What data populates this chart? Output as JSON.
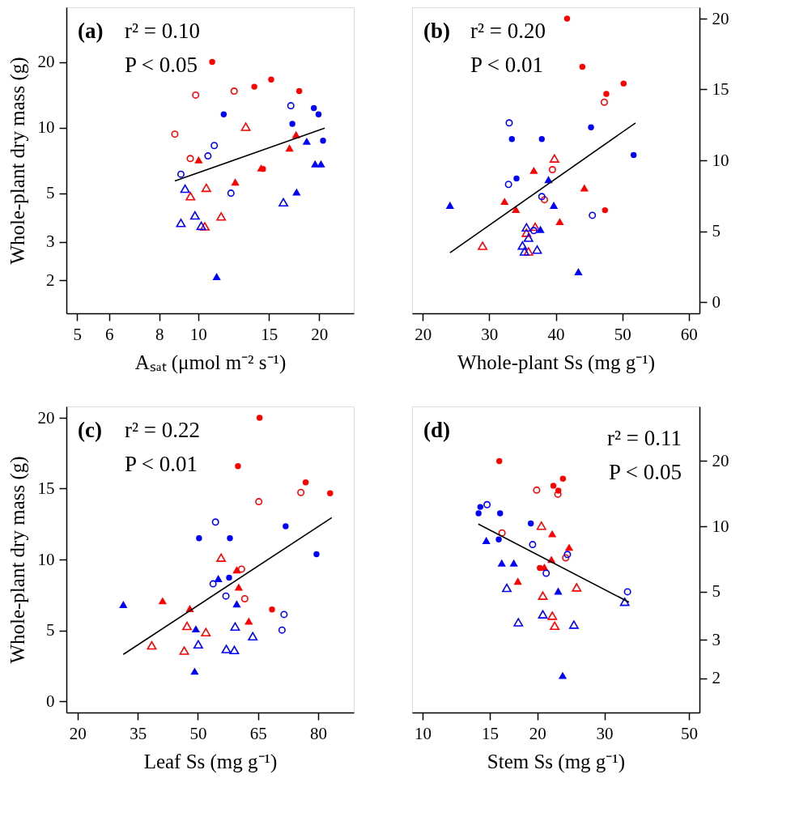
{
  "chart_data": [
    {
      "type": "scatter",
      "xlabel": "Aₛₐₜ (μmol m⁻² s⁻¹)",
      "ylabel": "Whole-plant dry mass (g)",
      "log": "xy",
      "xlim": [
        4.7,
        24.4
      ],
      "ylim": [
        1.41,
        35.6
      ],
      "xticks": [
        5,
        6,
        8,
        10,
        15,
        20
      ],
      "yticks": [
        2,
        3,
        5,
        10,
        20
      ],
      "grid": false,
      "annotations": [
        "(a)",
        "r² = 0.10",
        "P < 0.05"
      ],
      "series": [
        {
          "color": "#ff0000",
          "marker": "circle",
          "x": [
            10.84,
            13.8,
            15.2,
            17.85,
            14.5
          ],
          "values": [
            20.0,
            15.4,
            16.6,
            14.7,
            6.47
          ]
        },
        {
          "color": "#ff0000",
          "marker": "circle",
          "x": [
            9.86,
            12.29,
            8.75,
            9.56
          ],
          "values": [
            14.1,
            14.7,
            9.34,
            7.22
          ]
        },
        {
          "color": "#ff0000",
          "marker": "triangle",
          "x": [
            10.03,
            12.37,
            16.88,
            17.53,
            14.35
          ],
          "values": [
            7.12,
            5.64,
            8.07,
            9.29,
            6.54
          ]
        },
        {
          "color": "#ff0000",
          "marker": "triangle",
          "x": [
            13.14,
            10.48,
            9.57,
            11.41,
            10.39
          ],
          "values": [
            10.1,
            5.3,
            4.85,
            3.92,
            3.53
          ]
        },
        {
          "color": "#0000ff",
          "marker": "circle",
          "x": [
            11.58,
            17.16,
            19.41,
            19.94,
            20.46
          ],
          "values": [
            11.5,
            10.4,
            12.3,
            11.5,
            8.72
          ]
        },
        {
          "color": "#0000ff",
          "marker": "circle",
          "x": [
            9.06,
            10.58,
            10.97,
            12.07,
            17.01
          ],
          "values": [
            6.12,
            7.42,
            8.28,
            5.01,
            12.6
          ]
        },
        {
          "color": "#0000ff",
          "marker": "triangle",
          "x": [
            11.12,
            17.58,
            18.63,
            19.55,
            20.22
          ],
          "values": [
            2.08,
            5.08,
            8.67,
            6.83,
            6.83
          ]
        },
        {
          "color": "#0000ff",
          "marker": "triangle",
          "x": [
            9.28,
            9.06,
            9.82,
            10.18,
            16.3
          ],
          "values": [
            5.25,
            3.66,
            3.96,
            3.55,
            4.55
          ]
        },
        {
          "type": "line",
          "color": "#000000",
          "line_style": "solid",
          "x": [
            8.75,
            20.65
          ],
          "values": [
            5.7,
            9.95
          ]
        }
      ]
    },
    {
      "type": "scatter",
      "xlabel": "Whole-plant Ss (mg g⁻¹)",
      "xlim": [
        18.4,
        61.6
      ],
      "ylim": [
        -0.8,
        20.8
      ],
      "xticks": [
        20,
        30,
        40,
        50,
        60
      ],
      "yticks": [
        0,
        5,
        10,
        15,
        20
      ],
      "grid": false,
      "annotations": [
        "(b)",
        "r² = 0.20",
        "P < 0.01"
      ],
      "series": [
        {
          "color": "#ff0000",
          "marker": "circle",
          "x": [
            41.7,
            44.0,
            50.2,
            47.6,
            47.4
          ],
          "values": [
            20.0,
            16.6,
            15.42,
            14.69,
            6.48
          ]
        },
        {
          "color": "#ff0000",
          "marker": "circle",
          "x": [
            39.5,
            38.3,
            47.3
          ],
          "values": [
            9.34,
            7.22,
            14.1
          ]
        },
        {
          "color": "#ff0000",
          "marker": "triangle",
          "x": [
            36.7,
            32.3,
            34.0,
            44.3,
            40.6
          ],
          "values": [
            9.29,
            7.11,
            6.54,
            8.06,
            5.68
          ]
        },
        {
          "color": "#ff0000",
          "marker": "triangle",
          "x": [
            39.8,
            29.0,
            36.9,
            35.6,
            35.9
          ],
          "values": [
            10.13,
            3.97,
            5.31,
            4.89,
            3.57
          ]
        },
        {
          "color": "#0000ff",
          "marker": "circle",
          "x": [
            33.4,
            37.9,
            45.3,
            51.7,
            34.1
          ],
          "values": [
            11.5,
            11.5,
            12.33,
            10.37,
            8.72
          ]
        },
        {
          "color": "#0000ff",
          "marker": "circle",
          "x": [
            33.0,
            32.9,
            37.9,
            45.5,
            36.7
          ],
          "values": [
            12.64,
            8.3,
            7.44,
            6.12,
            5.04
          ]
        },
        {
          "color": "#0000ff",
          "marker": "triangle",
          "x": [
            24.1,
            38.9,
            39.7,
            37.7,
            43.4
          ],
          "values": [
            6.83,
            8.64,
            6.83,
            5.13,
            2.14
          ]
        },
        {
          "color": "#0000ff",
          "marker": "triangle",
          "x": [
            35.6,
            35.9,
            35.0,
            35.3,
            37.2
          ],
          "values": [
            5.27,
            4.54,
            3.99,
            3.57,
            3.7
          ]
        },
        {
          "type": "line",
          "color": "#000000",
          "line_style": "solid",
          "x": [
            24.1,
            51.98
          ],
          "values": [
            3.48,
            12.64
          ]
        }
      ]
    },
    {
      "type": "scatter",
      "xlabel": "Leaf Ss (mg g⁻¹)",
      "ylabel": "Whole-plant dry mass (g)",
      "xlim": [
        17.2,
        88.9
      ],
      "ylim": [
        -0.8,
        20.8
      ],
      "xticks": [
        20,
        35,
        50,
        65,
        80
      ],
      "yticks": [
        0,
        5,
        10,
        15,
        20
      ],
      "grid": false,
      "annotations": [
        "(c)",
        "r² = 0.22",
        "P < 0.01"
      ],
      "series": [
        {
          "color": "#ff0000",
          "marker": "circle",
          "x": [
            65.4,
            60.0,
            76.9,
            83.0,
            68.5
          ],
          "values": [
            20.0,
            16.59,
            15.44,
            14.67,
            6.47
          ]
        },
        {
          "color": "#ff0000",
          "marker": "circle",
          "x": [
            65.2,
            75.7,
            60.9,
            61.7
          ],
          "values": [
            14.08,
            14.73,
            9.32,
            7.23
          ]
        },
        {
          "color": "#ff0000",
          "marker": "triangle",
          "x": [
            59.7,
            60.2,
            41.2,
            48.0,
            62.7
          ],
          "values": [
            9.27,
            8.06,
            7.09,
            6.54,
            5.66
          ]
        },
        {
          "color": "#ff0000",
          "marker": "triangle",
          "x": [
            55.8,
            38.5,
            46.6,
            47.3,
            52.0
          ],
          "values": [
            10.13,
            3.94,
            3.57,
            5.31,
            4.87
          ]
        },
        {
          "color": "#0000ff",
          "marker": "circle",
          "x": [
            50.3,
            58.0,
            71.9,
            79.6,
            57.8
          ],
          "values": [
            11.5,
            11.5,
            12.34,
            10.37,
            8.72
          ]
        },
        {
          "color": "#0000ff",
          "marker": "circle",
          "x": [
            54.4,
            53.8,
            57.0,
            71.5,
            71.0
          ],
          "values": [
            12.64,
            8.28,
            7.42,
            6.12,
            5.02
          ]
        },
        {
          "color": "#0000ff",
          "marker": "triangle",
          "x": [
            31.4,
            55.1,
            59.7,
            49.5,
            49.2
          ],
          "values": [
            6.83,
            8.66,
            6.87,
            5.11,
            2.12
          ]
        },
        {
          "color": "#0000ff",
          "marker": "triangle",
          "x": [
            50.1,
            57.1,
            59.1,
            59.3,
            63.7
          ],
          "values": [
            4.01,
            3.68,
            3.61,
            5.27,
            4.58
          ]
        },
        {
          "type": "line",
          "color": "#000000",
          "line_style": "solid",
          "x": [
            31.4,
            83.4
          ],
          "values": [
            3.3,
            12.95
          ]
        }
      ]
    },
    {
      "type": "scatter",
      "xlabel": "Stem Ss (mg g⁻¹)",
      "log": "xy",
      "xlim": [
        9.38,
        53.3
      ],
      "ylim": [
        1.39,
        35.7
      ],
      "xticks": [
        10,
        15,
        20,
        30,
        50
      ],
      "yticks": [
        2,
        3,
        5,
        10,
        20
      ],
      "grid": false,
      "annotations": [
        "(d)",
        "r² = 0.11",
        "P < 0.05"
      ],
      "series": [
        {
          "color": "#ff0000",
          "marker": "circle",
          "x": [
            15.89,
            22.04,
            23.35,
            22.71,
            20.31
          ],
          "values": [
            20.0,
            15.4,
            16.59,
            14.62,
            6.44
          ]
        },
        {
          "color": "#ff0000",
          "marker": "circle",
          "x": [
            19.92,
            22.65,
            16.16,
            23.74
          ],
          "values": [
            14.7,
            14.07,
            9.33,
            7.17
          ]
        },
        {
          "color": "#ff0000",
          "marker": "triangle",
          "x": [
            21.88,
            24.24,
            21.78,
            20.87,
            17.78
          ],
          "values": [
            9.26,
            8.02,
            7.05,
            6.49,
            5.6
          ]
        },
        {
          "color": "#ff0000",
          "marker": "triangle",
          "x": [
            20.5,
            25.37,
            20.68,
            21.9,
            22.21
          ],
          "values": [
            10.08,
            5.24,
            4.8,
            3.88,
            3.49
          ]
        },
        {
          "color": "#0000ff",
          "marker": "circle",
          "x": [
            14.02,
            14.17,
            15.97,
            19.23,
            15.84
          ],
          "values": [
            11.5,
            12.3,
            11.5,
            10.33,
            8.71
          ]
        },
        {
          "color": "#0000ff",
          "marker": "circle",
          "x": [
            14.76,
            19.44,
            21.1,
            23.99,
            34.5
          ],
          "values": [
            12.6,
            8.25,
            6.09,
            7.43,
            5.0
          ]
        },
        {
          "color": "#0000ff",
          "marker": "triangle",
          "x": [
            14.69,
            16.13,
            17.35,
            22.69,
            23.31
          ],
          "values": [
            8.62,
            6.79,
            6.79,
            5.04,
            2.06
          ]
        },
        {
          "color": "#0000ff",
          "marker": "triangle",
          "x": [
            16.63,
            17.83,
            20.68,
            24.95,
            33.93
          ],
          "values": [
            5.21,
            3.62,
            3.94,
            3.53,
            4.5
          ]
        },
        {
          "type": "line",
          "color": "#000000",
          "line_style": "solid",
          "x": [
            14.0,
            34.8
          ],
          "values": [
            10.25,
            4.48
          ]
        }
      ]
    }
  ]
}
